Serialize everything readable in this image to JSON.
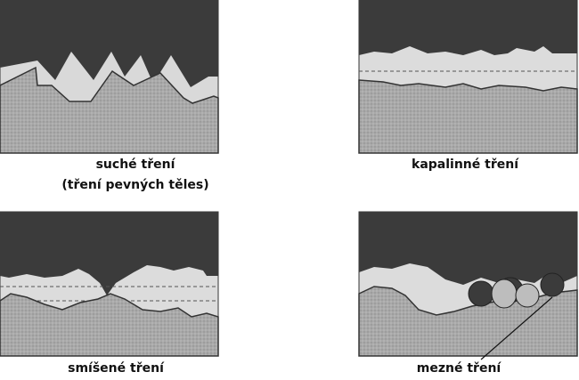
{
  "panels": [
    {
      "caption_lines": [
        "suché tření",
        "(tření pevných těles)"
      ]
    },
    {
      "caption_lines": [
        "kapalinné tření"
      ]
    },
    {
      "caption_lines": [
        "smíšené tření"
      ]
    },
    {
      "caption_lines": [
        "mezné tření"
      ]
    }
  ]
}
